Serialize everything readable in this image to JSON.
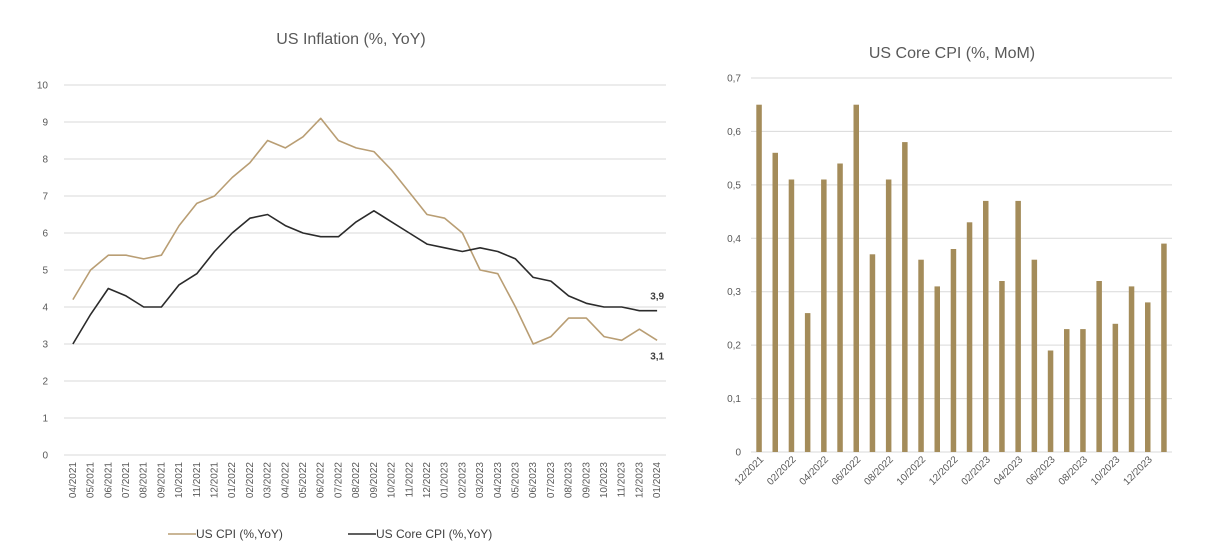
{
  "colors": {
    "cpi": "#b99e74",
    "core": "#2b2b2b",
    "bar": "#a48c5a",
    "grid": "#d9d9d9",
    "text": "#595959"
  },
  "chart_data": [
    {
      "type": "line",
      "title": "US Inflation (%, YoY)",
      "xlabel": "",
      "ylabel": "",
      "ylim": [
        0,
        10
      ],
      "yticks": [
        "0",
        "1",
        "2",
        "3",
        "4",
        "5",
        "6",
        "7",
        "8",
        "9",
        "10"
      ],
      "grid": true,
      "legend": "bottom",
      "categories": [
        "04/2021",
        "05/2021",
        "06/2021",
        "07/2021",
        "08/2021",
        "09/2021",
        "10/2021",
        "11/2021",
        "12/2021",
        "01/2022",
        "02/2022",
        "03/2022",
        "04/2022",
        "05/2022",
        "06/2022",
        "07/2022",
        "08/2022",
        "09/2022",
        "10/2022",
        "11/2022",
        "12/2022",
        "01/2023",
        "02/2023",
        "03/2023",
        "04/2023",
        "05/2023",
        "06/2023",
        "07/2023",
        "08/2023",
        "09/2023",
        "10/2023",
        "11/2023",
        "12/2023",
        "01/2024"
      ],
      "series": [
        {
          "name": "US CPI (%,YoY)",
          "values": [
            4.2,
            5.0,
            5.4,
            5.4,
            5.3,
            5.4,
            6.2,
            6.8,
            7.0,
            7.5,
            7.9,
            8.5,
            8.3,
            8.6,
            9.1,
            8.5,
            8.3,
            8.2,
            7.7,
            7.1,
            6.5,
            6.4,
            6.0,
            5.0,
            4.9,
            4.0,
            3.0,
            3.2,
            3.7,
            3.7,
            3.2,
            3.1,
            3.4,
            3.1
          ]
        },
        {
          "name": "US Core CPI (%,YoY)",
          "values": [
            3.0,
            3.8,
            4.5,
            4.3,
            4.0,
            4.0,
            4.6,
            4.9,
            5.5,
            6.0,
            6.4,
            6.5,
            6.2,
            6.0,
            5.9,
            5.9,
            6.3,
            6.6,
            6.3,
            6.0,
            5.7,
            5.6,
            5.5,
            5.6,
            5.5,
            5.3,
            4.8,
            4.7,
            4.3,
            4.1,
            4.0,
            4.0,
            3.9,
            3.9
          ]
        }
      ],
      "annotations": [
        {
          "series": 1,
          "index": 33,
          "text": "3,9"
        },
        {
          "series": 0,
          "index": 33,
          "text": "3,1"
        }
      ]
    },
    {
      "type": "bar",
      "title": "US Core CPI (%, MoM)",
      "xlabel": "",
      "ylabel": "",
      "ylim": [
        0,
        0.7
      ],
      "yticks": [
        "0",
        "0,1",
        "0,2",
        "0,3",
        "0,4",
        "0,5",
        "0,6",
        "0,7"
      ],
      "grid": true,
      "categories": [
        "12/2021",
        "01/2022",
        "02/2022",
        "03/2022",
        "04/2022",
        "05/2022",
        "06/2022",
        "07/2022",
        "08/2022",
        "09/2022",
        "10/2022",
        "11/2022",
        "12/2022",
        "01/2023",
        "02/2023",
        "03/2023",
        "04/2023",
        "05/2023",
        "06/2023",
        "07/2023",
        "08/2023",
        "09/2023",
        "10/2023",
        "11/2023",
        "12/2023",
        "01/2024"
      ],
      "tick_labels_shown": [
        "12/2021",
        "02/2022",
        "04/2022",
        "06/2022",
        "08/2022",
        "10/2022",
        "12/2022",
        "02/2023",
        "04/2023",
        "06/2023",
        "08/2023",
        "10/2023",
        "12/2023"
      ],
      "values": [
        0.65,
        0.56,
        0.51,
        0.26,
        0.51,
        0.54,
        0.65,
        0.37,
        0.51,
        0.58,
        0.36,
        0.31,
        0.38,
        0.43,
        0.47,
        0.32,
        0.47,
        0.36,
        0.19,
        0.23,
        0.23,
        0.32,
        0.24,
        0.31,
        0.28,
        0.39
      ]
    }
  ]
}
